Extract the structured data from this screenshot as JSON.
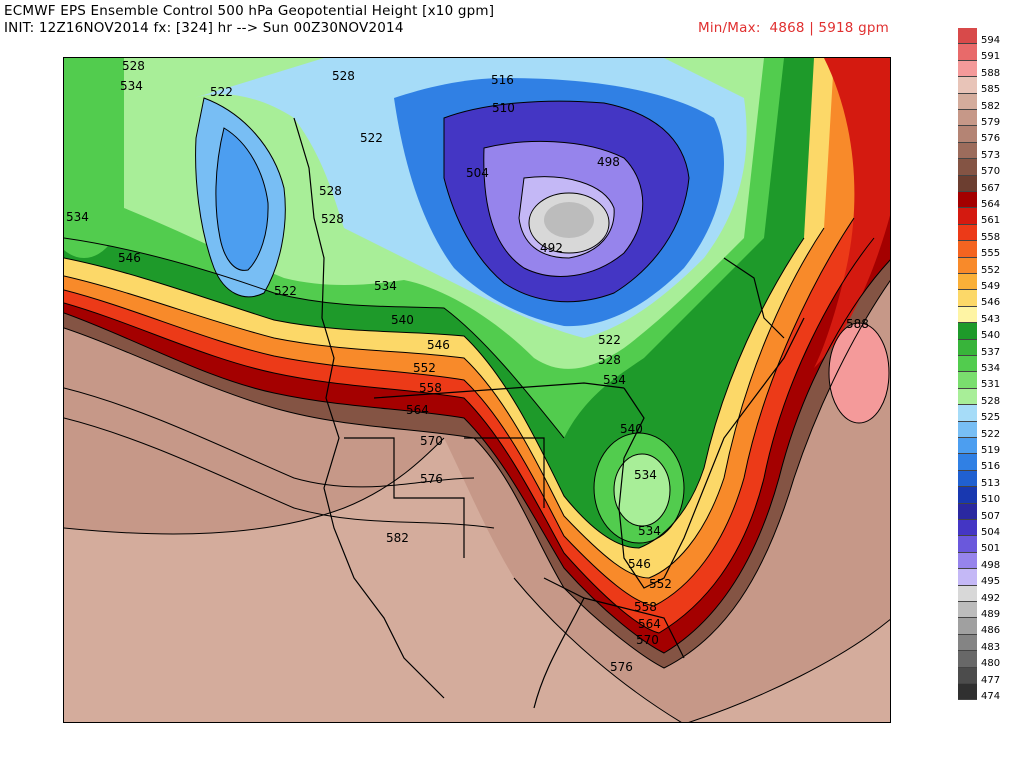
{
  "header": {
    "title": "ECMWF EPS Ensemble Control 500 hPa Geopotential Height [x10 gpm]",
    "init_line": "INIT: 12Z16NOV2014 fx: [324] hr --> Sun 00Z30NOV2014",
    "minmax": "Min/Max:  4868 | 5918 gpm"
  },
  "legend": {
    "entries": [
      {
        "label": "594",
        "color": "#d84a4a"
      },
      {
        "label": "591",
        "color": "#e86a6a"
      },
      {
        "label": "588",
        "color": "#f49a9a"
      },
      {
        "label": "585",
        "color": "#e8c4b8"
      },
      {
        "label": "582",
        "color": "#d4ac9c"
      },
      {
        "label": "579",
        "color": "#c69888"
      },
      {
        "label": "576",
        "color": "#b48474"
      },
      {
        "label": "573",
        "color": "#9c6c5c"
      },
      {
        "label": "570",
        "color": "#845444"
      },
      {
        "label": "567",
        "color": "#6c3e30"
      },
      {
        "label": "564",
        "color": "#a40000"
      },
      {
        "label": "561",
        "color": "#d41a10"
      },
      {
        "label": "558",
        "color": "#ec3a18"
      },
      {
        "label": "555",
        "color": "#f46420"
      },
      {
        "label": "552",
        "color": "#f88a2a"
      },
      {
        "label": "549",
        "color": "#fab038"
      },
      {
        "label": "546",
        "color": "#fcd868"
      },
      {
        "label": "543",
        "color": "#fef4a4"
      },
      {
        "label": "540",
        "color": "#1e9a2a"
      },
      {
        "label": "537",
        "color": "#38b43a"
      },
      {
        "label": "534",
        "color": "#52cc4e"
      },
      {
        "label": "531",
        "color": "#7ade6e"
      },
      {
        "label": "528",
        "color": "#a8ee98"
      },
      {
        "label": "525",
        "color": "#a6dcf8"
      },
      {
        "label": "522",
        "color": "#78bef4"
      },
      {
        "label": "519",
        "color": "#4c9ef0"
      },
      {
        "label": "516",
        "color": "#3080e4"
      },
      {
        "label": "513",
        "color": "#2060d0"
      },
      {
        "label": "510",
        "color": "#1838b0"
      },
      {
        "label": "507",
        "color": "#2a28a0"
      },
      {
        "label": "504",
        "color": "#4436c4"
      },
      {
        "label": "501",
        "color": "#6a58dc"
      },
      {
        "label": "498",
        "color": "#9684ec"
      },
      {
        "label": "495",
        "color": "#c4b8f6"
      },
      {
        "label": "492",
        "color": "#d8d8d8"
      },
      {
        "label": "489",
        "color": "#bcbcbc"
      },
      {
        "label": "486",
        "color": "#a0a0a0"
      },
      {
        "label": "483",
        "color": "#848484"
      },
      {
        "label": "480",
        "color": "#686868"
      },
      {
        "label": "477",
        "color": "#4c4c4c"
      },
      {
        "label": "474",
        "color": "#303030"
      }
    ]
  },
  "contour_labels": [
    "528",
    "534",
    "522",
    "528",
    "522",
    "528",
    "528",
    "534",
    "522",
    "534",
    "546",
    "516",
    "510",
    "498",
    "504",
    "492",
    "534",
    "540",
    "546",
    "552",
    "558",
    "564",
    "570",
    "576",
    "582",
    "522",
    "528",
    "534",
    "540",
    "534",
    "546",
    "552",
    "558",
    "564",
    "570",
    "576",
    "588"
  ]
}
